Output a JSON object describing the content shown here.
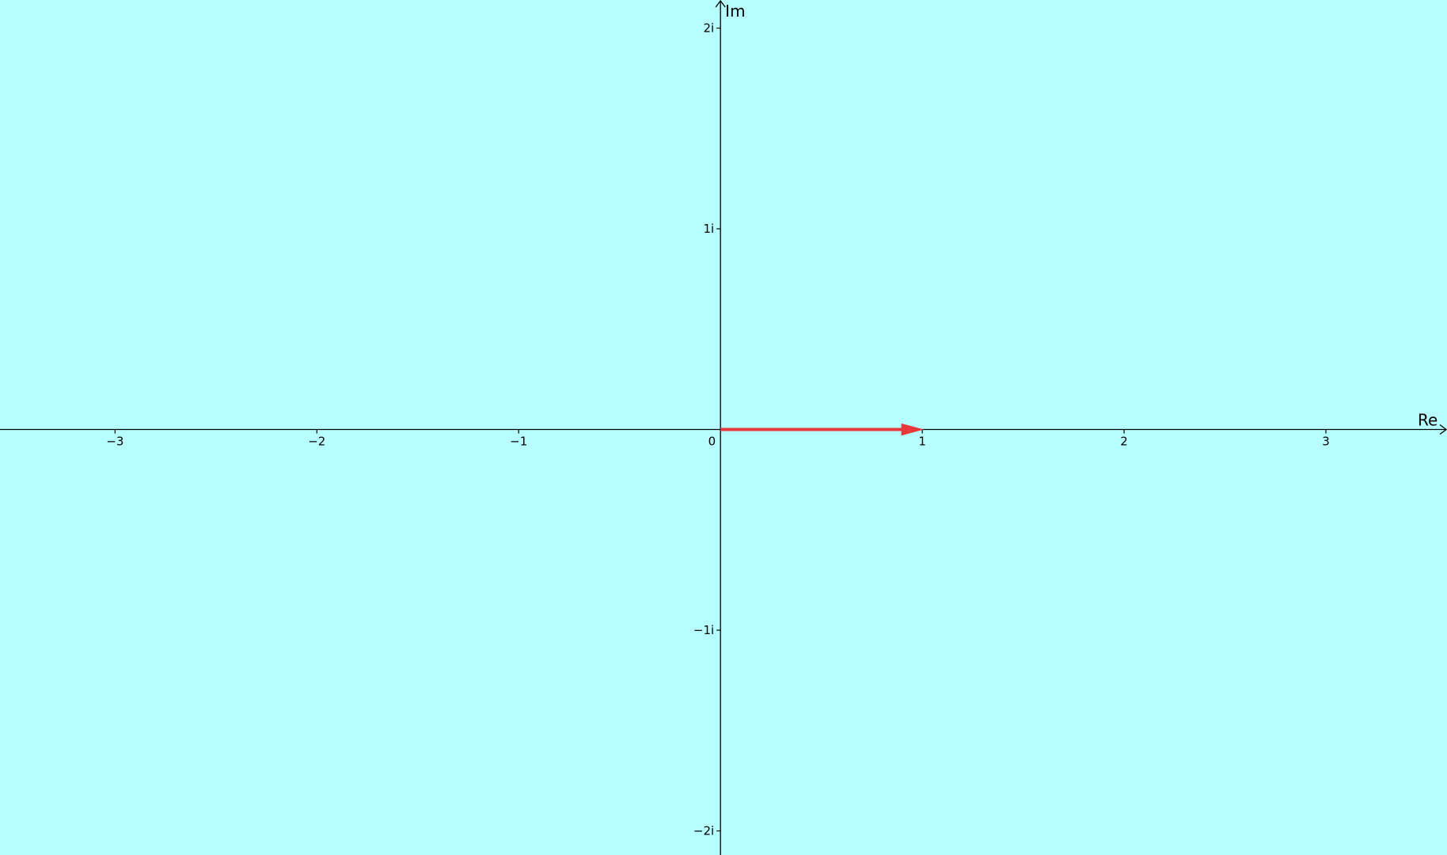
{
  "canvas": {
    "background": "#b7ffff"
  },
  "axes": {
    "x_label": "Re",
    "y_label": "Im",
    "x_range": [
      -3.57,
      3.6
    ],
    "y_range": [
      -2.12,
      2.14
    ],
    "axis_color": "#000000",
    "x_ticks": [
      {
        "value": -3,
        "label": "−3"
      },
      {
        "value": -2,
        "label": "−2"
      },
      {
        "value": -1,
        "label": "−1"
      },
      {
        "value": 1,
        "label": "1"
      },
      {
        "value": 2,
        "label": "2"
      },
      {
        "value": 3,
        "label": "3"
      }
    ],
    "y_ticks": [
      {
        "value": 2,
        "label": "2i"
      },
      {
        "value": 1,
        "label": "1i"
      },
      {
        "value": -1,
        "label": "−1i"
      },
      {
        "value": -2,
        "label": "−2i"
      }
    ],
    "origin_label": "0"
  },
  "vectors": [
    {
      "from": [
        0,
        0
      ],
      "to": [
        1,
        0
      ],
      "color": "#e8373b"
    }
  ]
}
